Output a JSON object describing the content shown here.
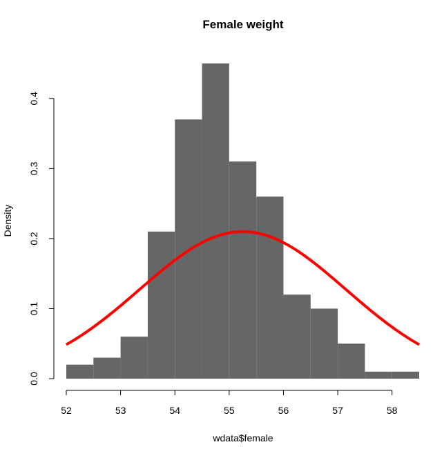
{
  "chart_data": {
    "type": "bar",
    "title": "Female weight",
    "xlabel": "wdata$female",
    "ylabel": "Density",
    "bars": [
      {
        "x0": 52.0,
        "x1": 52.5,
        "density": 0.02
      },
      {
        "x0": 52.5,
        "x1": 53.0,
        "density": 0.03
      },
      {
        "x0": 53.0,
        "x1": 53.5,
        "density": 0.06
      },
      {
        "x0": 53.5,
        "x1": 54.0,
        "density": 0.21
      },
      {
        "x0": 54.0,
        "x1": 54.5,
        "density": 0.37
      },
      {
        "x0": 54.5,
        "x1": 55.0,
        "density": 0.45
      },
      {
        "x0": 55.0,
        "x1": 55.5,
        "density": 0.31
      },
      {
        "x0": 55.5,
        "x1": 56.0,
        "density": 0.26
      },
      {
        "x0": 56.0,
        "x1": 56.5,
        "density": 0.12
      },
      {
        "x0": 56.5,
        "x1": 57.0,
        "density": 0.1
      },
      {
        "x0": 57.0,
        "x1": 57.5,
        "density": 0.05
      },
      {
        "x0": 57.5,
        "x1": 58.0,
        "density": 0.01
      },
      {
        "x0": 58.0,
        "x1": 58.5,
        "density": 0.01
      }
    ],
    "curve": {
      "name": "normal density",
      "mean": 55.25,
      "sd": 1.9,
      "x_range": [
        52.0,
        58.5
      ],
      "color": "#ff0000"
    },
    "bar_color": "#666666",
    "xlim": [
      52.0,
      58.5
    ],
    "ylim": [
      0,
      0.45
    ],
    "x_ticks": [
      52,
      53,
      54,
      55,
      56,
      57,
      58
    ],
    "y_ticks": [
      "0.0",
      "0.1",
      "0.2",
      "0.3",
      "0.4"
    ],
    "grid": false
  }
}
